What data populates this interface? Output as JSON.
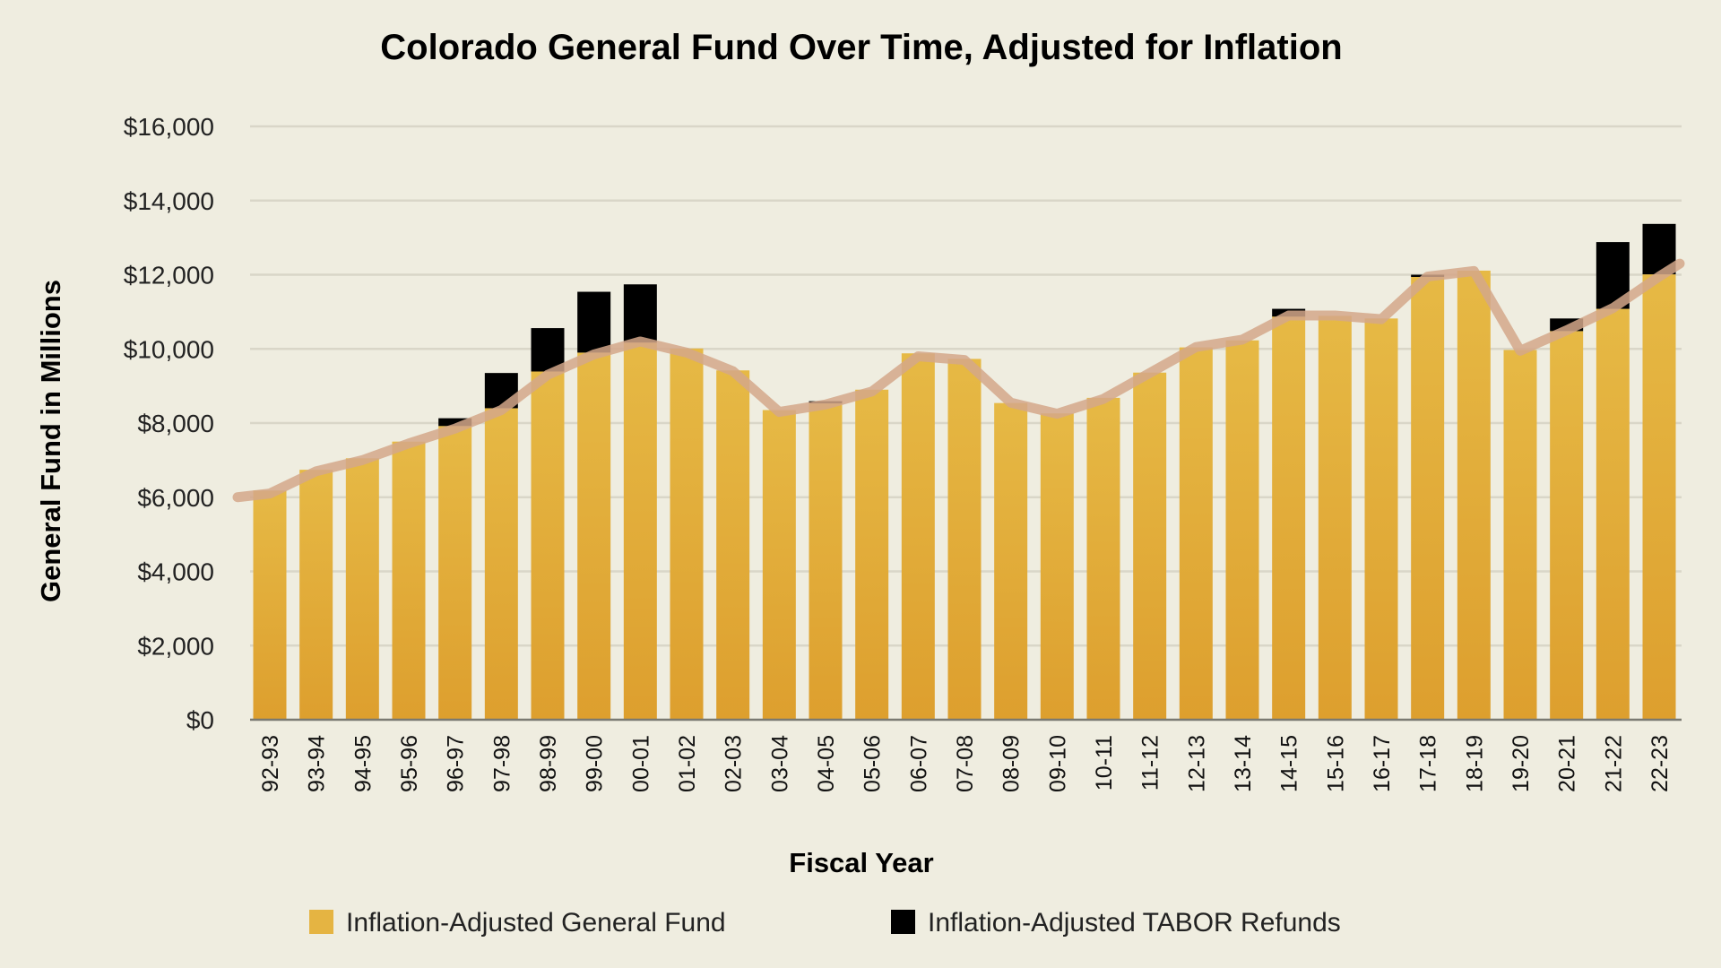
{
  "chart_data": {
    "type": "bar",
    "stacked": true,
    "title": "Colorado General Fund Over Time, Adjusted for Inflation",
    "xlabel": "Fiscal Year",
    "ylabel": "General Fund in Millions",
    "ylim": [
      0,
      16000
    ],
    "yticks": [
      0,
      2000,
      4000,
      6000,
      8000,
      10000,
      12000,
      14000,
      16000
    ],
    "ytick_labels": [
      "$0",
      "$2,000",
      "$4,000",
      "$6,000",
      "$8,000",
      "$10,000",
      "$12,000",
      "$14,000",
      "$16,000"
    ],
    "grid": true,
    "legend_position": "bottom",
    "categories": [
      "92-93",
      "93-94",
      "94-95",
      "95-96",
      "96-97",
      "97-98",
      "98-99",
      "99-00",
      "00-01",
      "01-02",
      "02-03",
      "03-04",
      "04-05",
      "05-06",
      "06-07",
      "07-08",
      "08-09",
      "09-10",
      "10-11",
      "11-12",
      "12-13",
      "13-14",
      "14-15",
      "15-16",
      "16-17",
      "17-18",
      "18-19",
      "19-20",
      "20-21",
      "21-22",
      "22-23"
    ],
    "series": [
      {
        "name": "Inflation-Adjusted General Fund",
        "color": "#e5b442",
        "values": [
          6180,
          6740,
          7050,
          7500,
          7920,
          8400,
          9390,
          9900,
          10170,
          10010,
          9420,
          8350,
          8530,
          8900,
          9880,
          9730,
          8540,
          8260,
          8680,
          9360,
          10040,
          10230,
          10870,
          10890,
          10820,
          11940,
          12110,
          9970,
          10480,
          11080,
          12010
        ]
      },
      {
        "name": "Inflation-Adjusted TABOR Refunds",
        "color": "#000000",
        "values": [
          0,
          0,
          0,
          0,
          210,
          950,
          1170,
          1640,
          1570,
          0,
          0,
          0,
          60,
          0,
          0,
          0,
          0,
          0,
          0,
          0,
          0,
          0,
          210,
          0,
          0,
          60,
          0,
          0,
          340,
          1800,
          1360
        ]
      }
    ],
    "trend_line": {
      "color": "#d4a78a",
      "values": [
        6100,
        6700,
        7000,
        7450,
        7850,
        8350,
        9300,
        9850,
        10200,
        9900,
        9400,
        8300,
        8500,
        8850,
        9800,
        9700,
        8550,
        8250,
        8650,
        9350,
        10050,
        10250,
        10900,
        10900,
        10800,
        11950,
        12100,
        9950,
        10500,
        11100,
        11950
      ]
    }
  }
}
